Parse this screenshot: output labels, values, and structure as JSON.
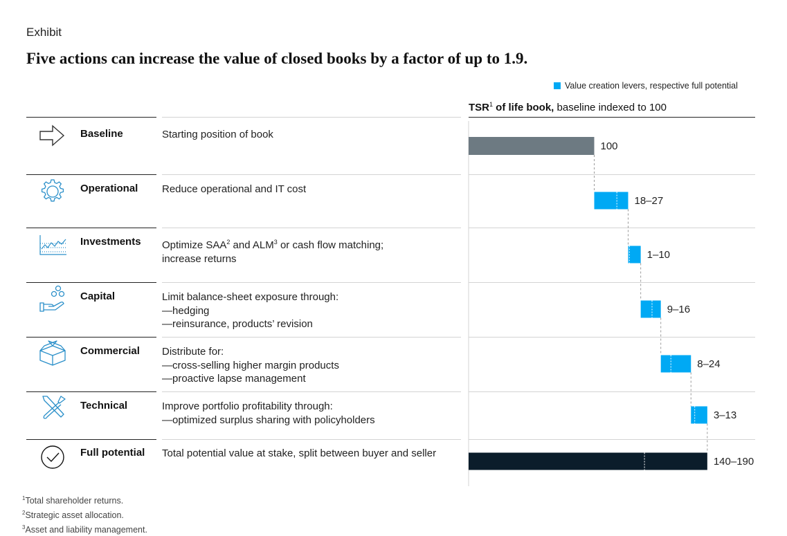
{
  "exhibit_label": "Exhibit",
  "title": "Five actions can increase the value of closed books by a factor of up to 1.9.",
  "legend": {
    "label": "Value creation levers, respective full potential",
    "color": "#00a9f4"
  },
  "axis_title": {
    "bold": "TSR",
    "sup": "1",
    "bold_rest": " of life book,",
    "rest": " baseline indexed to 100"
  },
  "rows": [
    {
      "lever": "Baseline",
      "icon": "arrow-right-icon",
      "desc": [
        "Starting position of book"
      ]
    },
    {
      "lever": "Operational",
      "icon": "gear-icon",
      "desc": [
        "Reduce operational and IT cost"
      ]
    },
    {
      "lever": "Investments",
      "icon": "line-chart-icon",
      "desc": [
        "Optimize SAA",
        "2",
        " and ALM",
        "3",
        " or cash flow matching;",
        "increase returns"
      ]
    },
    {
      "lever": "Capital",
      "icon": "hand-coins-icon",
      "desc": [
        "Limit balance-sheet exposure through:",
        "—hedging",
        "—reinsurance, products’ revision"
      ]
    },
    {
      "lever": "Commercial",
      "icon": "box-icon",
      "desc": [
        "Distribute for:",
        "—cross-selling higher margin products",
        "—proactive lapse management"
      ]
    },
    {
      "lever": "Technical",
      "icon": "tools-icon",
      "desc": [
        "Improve portfolio profitability through:",
        "—optimized surplus sharing with policyholders"
      ]
    },
    {
      "lever": "Full potential",
      "icon": "check-circle-icon",
      "desc": [
        "Total potential value at stake, split between buyer and seller"
      ]
    }
  ],
  "footnotes": [
    {
      "num": "1",
      "text": "Total shareholder returns."
    },
    {
      "num": "2",
      "text": "Strategic asset allocation."
    },
    {
      "num": "3",
      "text": "Asset and liability management."
    }
  ],
  "chart_data": {
    "type": "waterfall",
    "title": "TSR of life book, baseline indexed to 100",
    "xlim": [
      0,
      190
    ],
    "colors": {
      "baseline": "#6d7a82",
      "lever": "#00a9f4",
      "total": "#0b1d2b"
    },
    "bars": [
      {
        "name": "Baseline",
        "kind": "baseline",
        "start": 0,
        "end": 100,
        "label": "100"
      },
      {
        "name": "Operational",
        "kind": "lever",
        "start": 100,
        "end": 127,
        "dashed_from": 118,
        "label": "18–27"
      },
      {
        "name": "Investments",
        "kind": "lever",
        "start": 127,
        "end": 137,
        "dashed_from": 128,
        "label": "1–10"
      },
      {
        "name": "Capital",
        "kind": "lever",
        "start": 137,
        "end": 153,
        "dashed_from": 146,
        "label": "9–16"
      },
      {
        "name": "Commercial",
        "kind": "lever",
        "start": 153,
        "end": 177,
        "dashed_from": 161,
        "label": "8–24"
      },
      {
        "name": "Technical",
        "kind": "lever",
        "start": 177,
        "end": 190,
        "dashed_from": 180,
        "label": "3–13"
      },
      {
        "name": "Full potential",
        "kind": "total",
        "start": 0,
        "end": 190,
        "dashed_from": 140,
        "label": "140–190"
      }
    ]
  }
}
